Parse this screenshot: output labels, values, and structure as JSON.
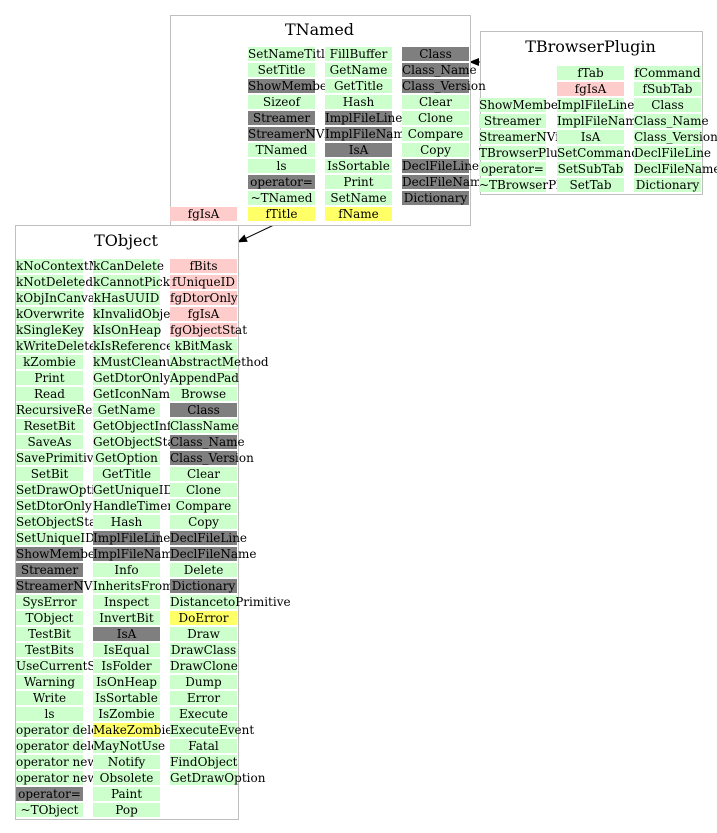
{
  "colors": {
    "method": "#ccffcc",
    "inherited": "#7f7f7f",
    "data_member": "#ffcccc",
    "reference": "#ffff66",
    "border": "#bfbfbf",
    "arrow": "#000000"
  },
  "classes": {
    "tnamed": {
      "title": "TNamed",
      "columns": [
        [
          {
            "t": "SetNameTitle",
            "c": "green"
          },
          {
            "t": "SetTitle",
            "c": "green"
          },
          {
            "t": "ShowMembers",
            "c": "gray"
          },
          {
            "t": "Sizeof",
            "c": "green"
          },
          {
            "t": "Streamer",
            "c": "gray"
          },
          {
            "t": "StreamerNVirtual",
            "c": "gray"
          },
          {
            "t": "TNamed",
            "c": "green"
          },
          {
            "t": "ls",
            "c": "green"
          },
          {
            "t": "operator=",
            "c": "gray"
          },
          {
            "t": "~TNamed",
            "c": "green"
          },
          {
            "t": "fTitle",
            "c": "yellow"
          }
        ],
        [
          {
            "t": "FillBuffer",
            "c": "green"
          },
          {
            "t": "GetName",
            "c": "green"
          },
          {
            "t": "GetTitle",
            "c": "green"
          },
          {
            "t": "Hash",
            "c": "green"
          },
          {
            "t": "ImplFileLine",
            "c": "gray"
          },
          {
            "t": "ImplFileName",
            "c": "gray"
          },
          {
            "t": "IsA",
            "c": "gray"
          },
          {
            "t": "IsSortable",
            "c": "green"
          },
          {
            "t": "Print",
            "c": "green"
          },
          {
            "t": "SetName",
            "c": "green"
          },
          {
            "t": "fName",
            "c": "yellow"
          }
        ],
        [
          {
            "t": "Class",
            "c": "gray"
          },
          {
            "t": "Class_Name",
            "c": "gray"
          },
          {
            "t": "Class_Version",
            "c": "gray"
          },
          {
            "t": "Clear",
            "c": "green"
          },
          {
            "t": "Clone",
            "c": "green"
          },
          {
            "t": "Compare",
            "c": "green"
          },
          {
            "t": "Copy",
            "c": "green"
          },
          {
            "t": "DeclFileLine",
            "c": "gray"
          },
          {
            "t": "DeclFileName",
            "c": "gray"
          },
          {
            "t": "Dictionary",
            "c": "gray"
          }
        ]
      ],
      "extra": {
        "t": "fgIsA",
        "c": "pink"
      }
    },
    "tbrowserplugin": {
      "title": "TBrowserPlugin",
      "columns": [
        [
          {
            "t": "ShowMembers",
            "c": "green"
          },
          {
            "t": "Streamer",
            "c": "green"
          },
          {
            "t": "StreamerNVirtual",
            "c": "green"
          },
          {
            "t": "TBrowserPlugin",
            "c": "green"
          },
          {
            "t": "operator=",
            "c": "green"
          },
          {
            "t": "~TBrowserPlugin",
            "c": "green"
          }
        ],
        [
          {
            "t": "fTab",
            "c": "green"
          },
          {
            "t": "fgIsA",
            "c": "pink"
          },
          {
            "t": "ImplFileLine",
            "c": "green"
          },
          {
            "t": "ImplFileName",
            "c": "green"
          },
          {
            "t": "IsA",
            "c": "green"
          },
          {
            "t": "SetCommand",
            "c": "green"
          },
          {
            "t": "SetSubTab",
            "c": "green"
          },
          {
            "t": "SetTab",
            "c": "green"
          }
        ],
        [
          {
            "t": "fCommand",
            "c": "green"
          },
          {
            "t": "fSubTab",
            "c": "green"
          },
          {
            "t": "Class",
            "c": "green"
          },
          {
            "t": "Class_Name",
            "c": "green"
          },
          {
            "t": "Class_Version",
            "c": "green"
          },
          {
            "t": "DeclFileLine",
            "c": "green"
          },
          {
            "t": "DeclFileName",
            "c": "green"
          },
          {
            "t": "Dictionary",
            "c": "green"
          }
        ]
      ]
    },
    "tobject": {
      "title": "TObject",
      "columns": [
        [
          {
            "t": "kNoContextMenu",
            "c": "green"
          },
          {
            "t": "kNotDeleted",
            "c": "green"
          },
          {
            "t": "kObjInCanvas",
            "c": "green"
          },
          {
            "t": "kOverwrite",
            "c": "green"
          },
          {
            "t": "kSingleKey",
            "c": "green"
          },
          {
            "t": "kWriteDelete",
            "c": "green"
          },
          {
            "t": "kZombie",
            "c": "green"
          },
          {
            "t": "Print",
            "c": "green"
          },
          {
            "t": "Read",
            "c": "green"
          },
          {
            "t": "RecursiveRemove",
            "c": "green"
          },
          {
            "t": "ResetBit",
            "c": "green"
          },
          {
            "t": "SaveAs",
            "c": "green"
          },
          {
            "t": "SavePrimitive",
            "c": "green"
          },
          {
            "t": "SetBit",
            "c": "green"
          },
          {
            "t": "SetDrawOption",
            "c": "green"
          },
          {
            "t": "SetDtorOnly",
            "c": "green"
          },
          {
            "t": "SetObjectStat",
            "c": "green"
          },
          {
            "t": "SetUniqueID",
            "c": "green"
          },
          {
            "t": "ShowMembers",
            "c": "gray"
          },
          {
            "t": "Streamer",
            "c": "gray"
          },
          {
            "t": "StreamerNVirtual",
            "c": "gray"
          },
          {
            "t": "SysError",
            "c": "green"
          },
          {
            "t": "TObject",
            "c": "green"
          },
          {
            "t": "TestBit",
            "c": "green"
          },
          {
            "t": "TestBits",
            "c": "green"
          },
          {
            "t": "UseCurrentStyle",
            "c": "green"
          },
          {
            "t": "Warning",
            "c": "green"
          },
          {
            "t": "Write",
            "c": "green"
          },
          {
            "t": "ls",
            "c": "green"
          },
          {
            "t": "operator delete",
            "c": "green"
          },
          {
            "t": "operator delete[]",
            "c": "green"
          },
          {
            "t": "operator new",
            "c": "green"
          },
          {
            "t": "operator new[]",
            "c": "green"
          },
          {
            "t": "operator=",
            "c": "gray"
          },
          {
            "t": "~TObject",
            "c": "green"
          }
        ],
        [
          {
            "t": "kCanDelete",
            "c": "green"
          },
          {
            "t": "kCannotPick",
            "c": "green"
          },
          {
            "t": "kHasUUID",
            "c": "green"
          },
          {
            "t": "kInvalidObject",
            "c": "green"
          },
          {
            "t": "kIsOnHeap",
            "c": "green"
          },
          {
            "t": "kIsReferenced",
            "c": "green"
          },
          {
            "t": "kMustCleanup",
            "c": "green"
          },
          {
            "t": "GetDtorOnly",
            "c": "green"
          },
          {
            "t": "GetIconName",
            "c": "green"
          },
          {
            "t": "GetName",
            "c": "green"
          },
          {
            "t": "GetObjectInfo",
            "c": "green"
          },
          {
            "t": "GetObjectStat",
            "c": "green"
          },
          {
            "t": "GetOption",
            "c": "green"
          },
          {
            "t": "GetTitle",
            "c": "green"
          },
          {
            "t": "GetUniqueID",
            "c": "green"
          },
          {
            "t": "HandleTimer",
            "c": "green"
          },
          {
            "t": "Hash",
            "c": "green"
          },
          {
            "t": "ImplFileLine",
            "c": "gray"
          },
          {
            "t": "ImplFileName",
            "c": "gray"
          },
          {
            "t": "Info",
            "c": "green"
          },
          {
            "t": "InheritsFrom",
            "c": "green"
          },
          {
            "t": "Inspect",
            "c": "green"
          },
          {
            "t": "InvertBit",
            "c": "green"
          },
          {
            "t": "IsA",
            "c": "gray"
          },
          {
            "t": "IsEqual",
            "c": "green"
          },
          {
            "t": "IsFolder",
            "c": "green"
          },
          {
            "t": "IsOnHeap",
            "c": "green"
          },
          {
            "t": "IsSortable",
            "c": "green"
          },
          {
            "t": "IsZombie",
            "c": "green"
          },
          {
            "t": "MakeZombie",
            "c": "yellow"
          },
          {
            "t": "MayNotUse",
            "c": "green"
          },
          {
            "t": "Notify",
            "c": "green"
          },
          {
            "t": "Obsolete",
            "c": "green"
          },
          {
            "t": "Paint",
            "c": "green"
          },
          {
            "t": "Pop",
            "c": "green"
          }
        ],
        [
          {
            "t": "fBits",
            "c": "pink"
          },
          {
            "t": "fUniqueID",
            "c": "pink"
          },
          {
            "t": "fgDtorOnly",
            "c": "pink"
          },
          {
            "t": "fgIsA",
            "c": "pink"
          },
          {
            "t": "fgObjectStat",
            "c": "pink"
          },
          {
            "t": "kBitMask",
            "c": "green"
          },
          {
            "t": "AbstractMethod",
            "c": "green"
          },
          {
            "t": "AppendPad",
            "c": "green"
          },
          {
            "t": "Browse",
            "c": "green"
          },
          {
            "t": "Class",
            "c": "gray"
          },
          {
            "t": "ClassName",
            "c": "green"
          },
          {
            "t": "Class_Name",
            "c": "gray"
          },
          {
            "t": "Class_Version",
            "c": "gray"
          },
          {
            "t": "Clear",
            "c": "green"
          },
          {
            "t": "Clone",
            "c": "green"
          },
          {
            "t": "Compare",
            "c": "green"
          },
          {
            "t": "Copy",
            "c": "green"
          },
          {
            "t": "DeclFileLine",
            "c": "gray"
          },
          {
            "t": "DeclFileName",
            "c": "gray"
          },
          {
            "t": "Delete",
            "c": "green"
          },
          {
            "t": "Dictionary",
            "c": "gray"
          },
          {
            "t": "DistancetoPrimitive",
            "c": "green"
          },
          {
            "t": "DoError",
            "c": "yellow"
          },
          {
            "t": "Draw",
            "c": "green"
          },
          {
            "t": "DrawClass",
            "c": "green"
          },
          {
            "t": "DrawClone",
            "c": "green"
          },
          {
            "t": "Dump",
            "c": "green"
          },
          {
            "t": "Error",
            "c": "green"
          },
          {
            "t": "Execute",
            "c": "green"
          },
          {
            "t": "ExecuteEvent",
            "c": "green"
          },
          {
            "t": "Fatal",
            "c": "green"
          },
          {
            "t": "FindObject",
            "c": "green"
          },
          {
            "t": "GetDrawOption",
            "c": "green"
          }
        ]
      ]
    }
  }
}
